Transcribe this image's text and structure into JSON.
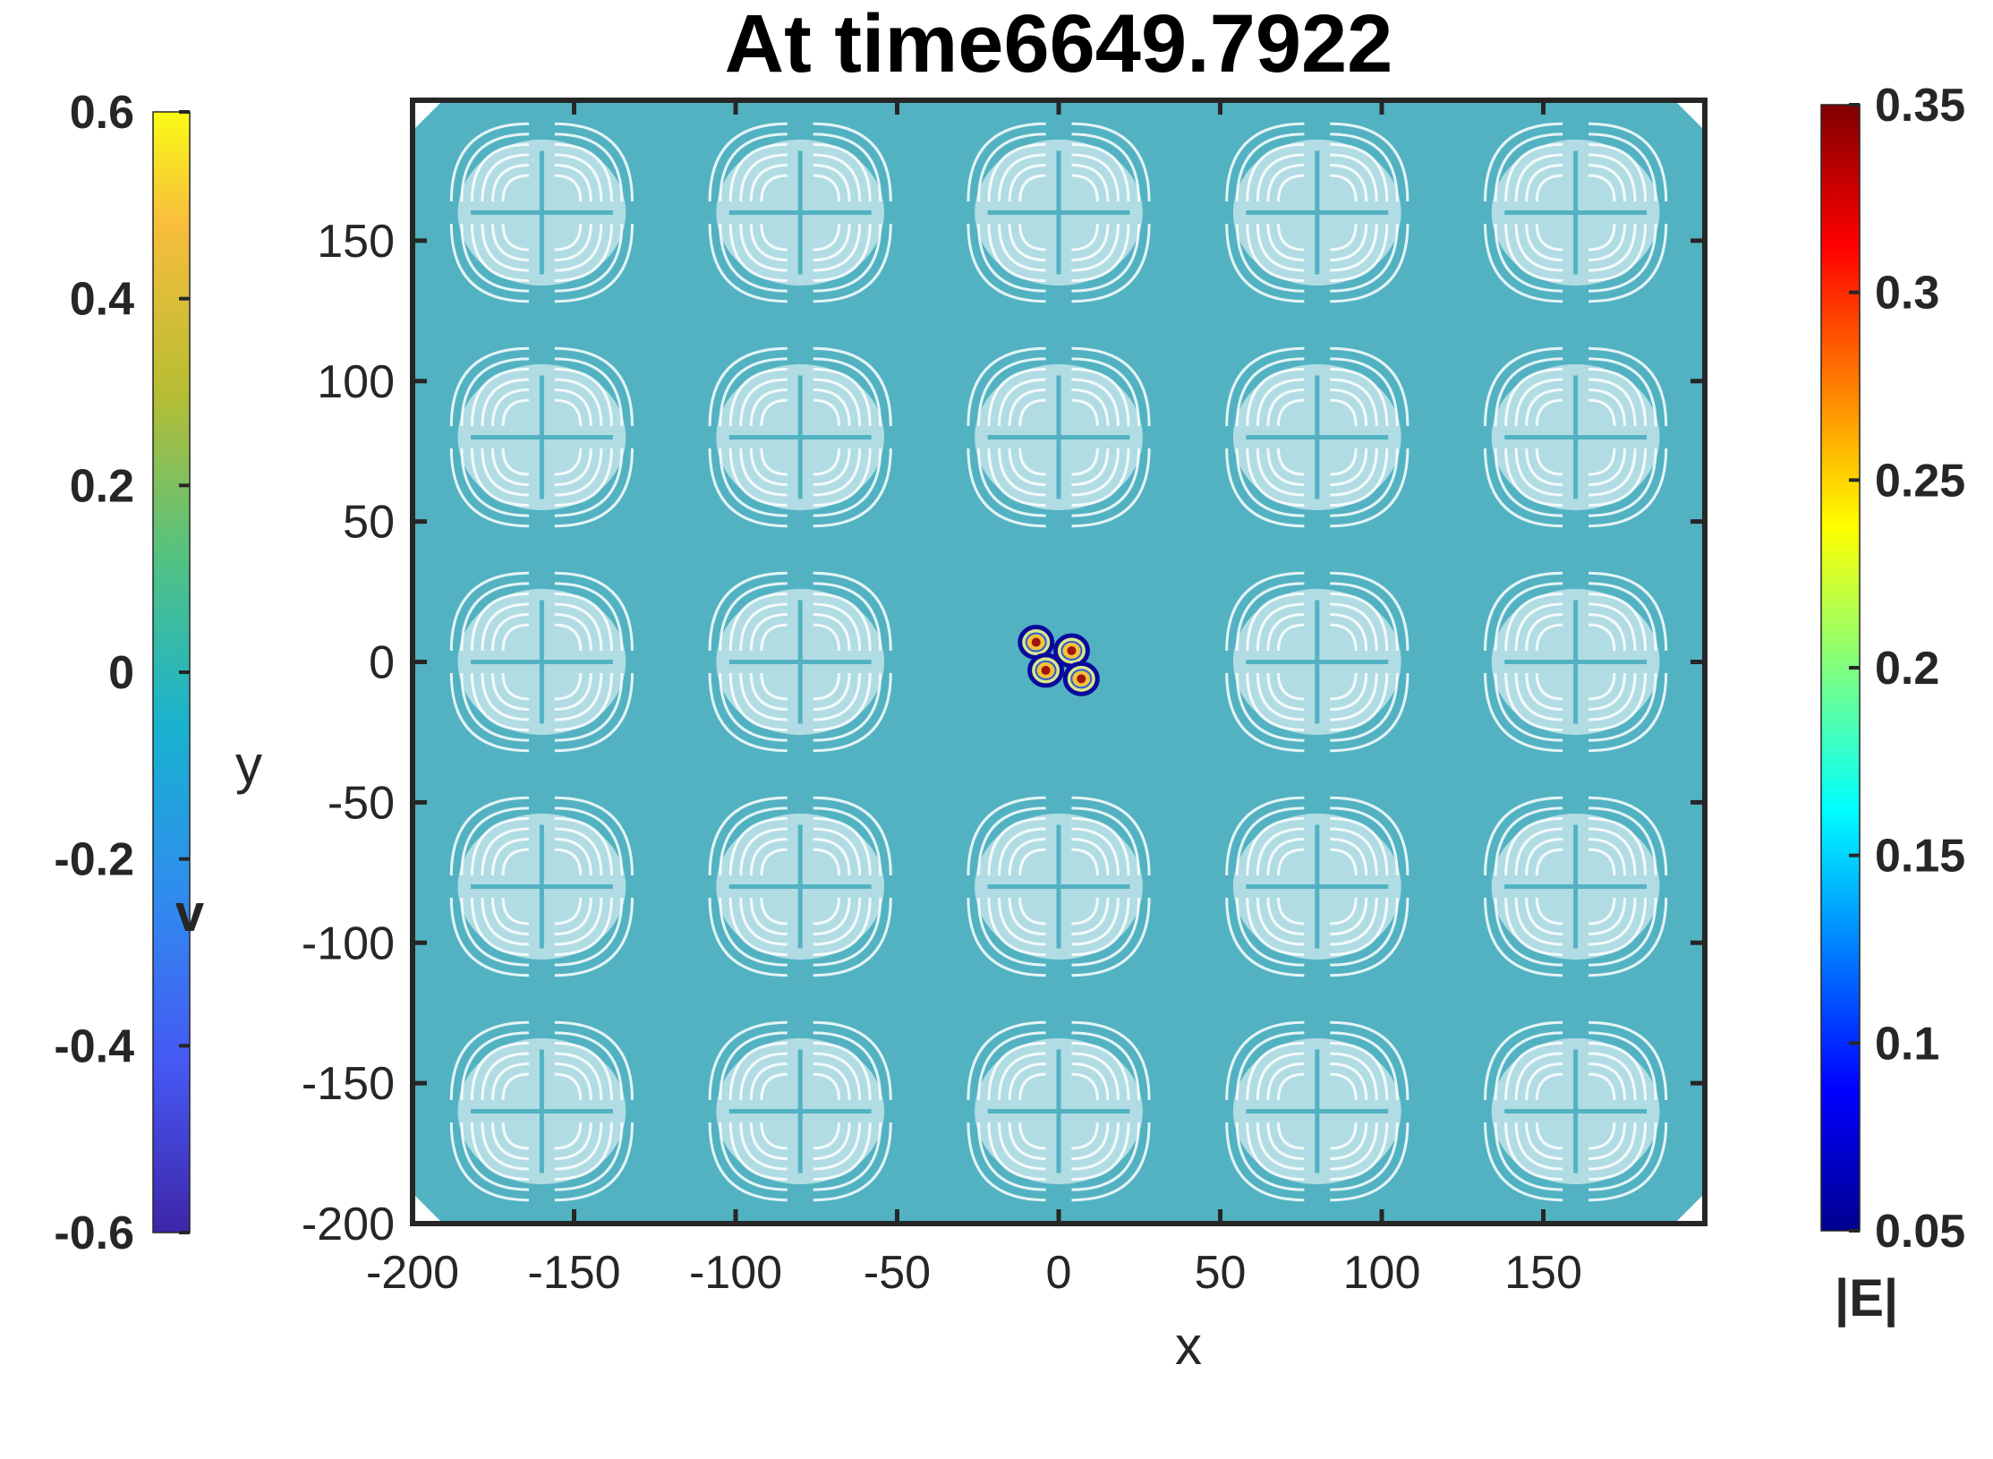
{
  "chart_data": {
    "type": "heatmap",
    "title": "At time6649.7922",
    "xlabel": "x",
    "ylabel": "y",
    "xlim": [
      -200,
      200
    ],
    "ylim": [
      -200,
      200
    ],
    "xticks": [
      -200,
      -150,
      -100,
      -50,
      0,
      50,
      100,
      150
    ],
    "yticks": [
      -200,
      -150,
      -100,
      -50,
      0,
      50,
      100,
      150
    ],
    "background_color": "#52b2c2",
    "lattice": {
      "x_centers": [
        -160,
        -80,
        0,
        80,
        160
      ],
      "y_centers": [
        -160,
        -80,
        0,
        80,
        160
      ],
      "pattern": "white four-lobed arc fan, cross at center"
    },
    "spots": [
      {
        "x": -7,
        "y": 7
      },
      {
        "x": 4,
        "y": 4
      },
      {
        "x": -4,
        "y": -3
      },
      {
        "x": 7,
        "y": -6
      }
    ],
    "colorbar_left": {
      "label": "v",
      "range": [
        -0.6,
        0.6
      ],
      "ticks": [
        0.6,
        0.4,
        0.2,
        0,
        -0.2,
        -0.4,
        -0.6
      ],
      "colormap": "parula"
    },
    "colorbar_right": {
      "label": "|E|",
      "range": [
        0.05,
        0.35
      ],
      "ticks": [
        0.35,
        0.3,
        0.25,
        0.2,
        0.15,
        0.1,
        0.05
      ],
      "colormap": "jet"
    }
  }
}
